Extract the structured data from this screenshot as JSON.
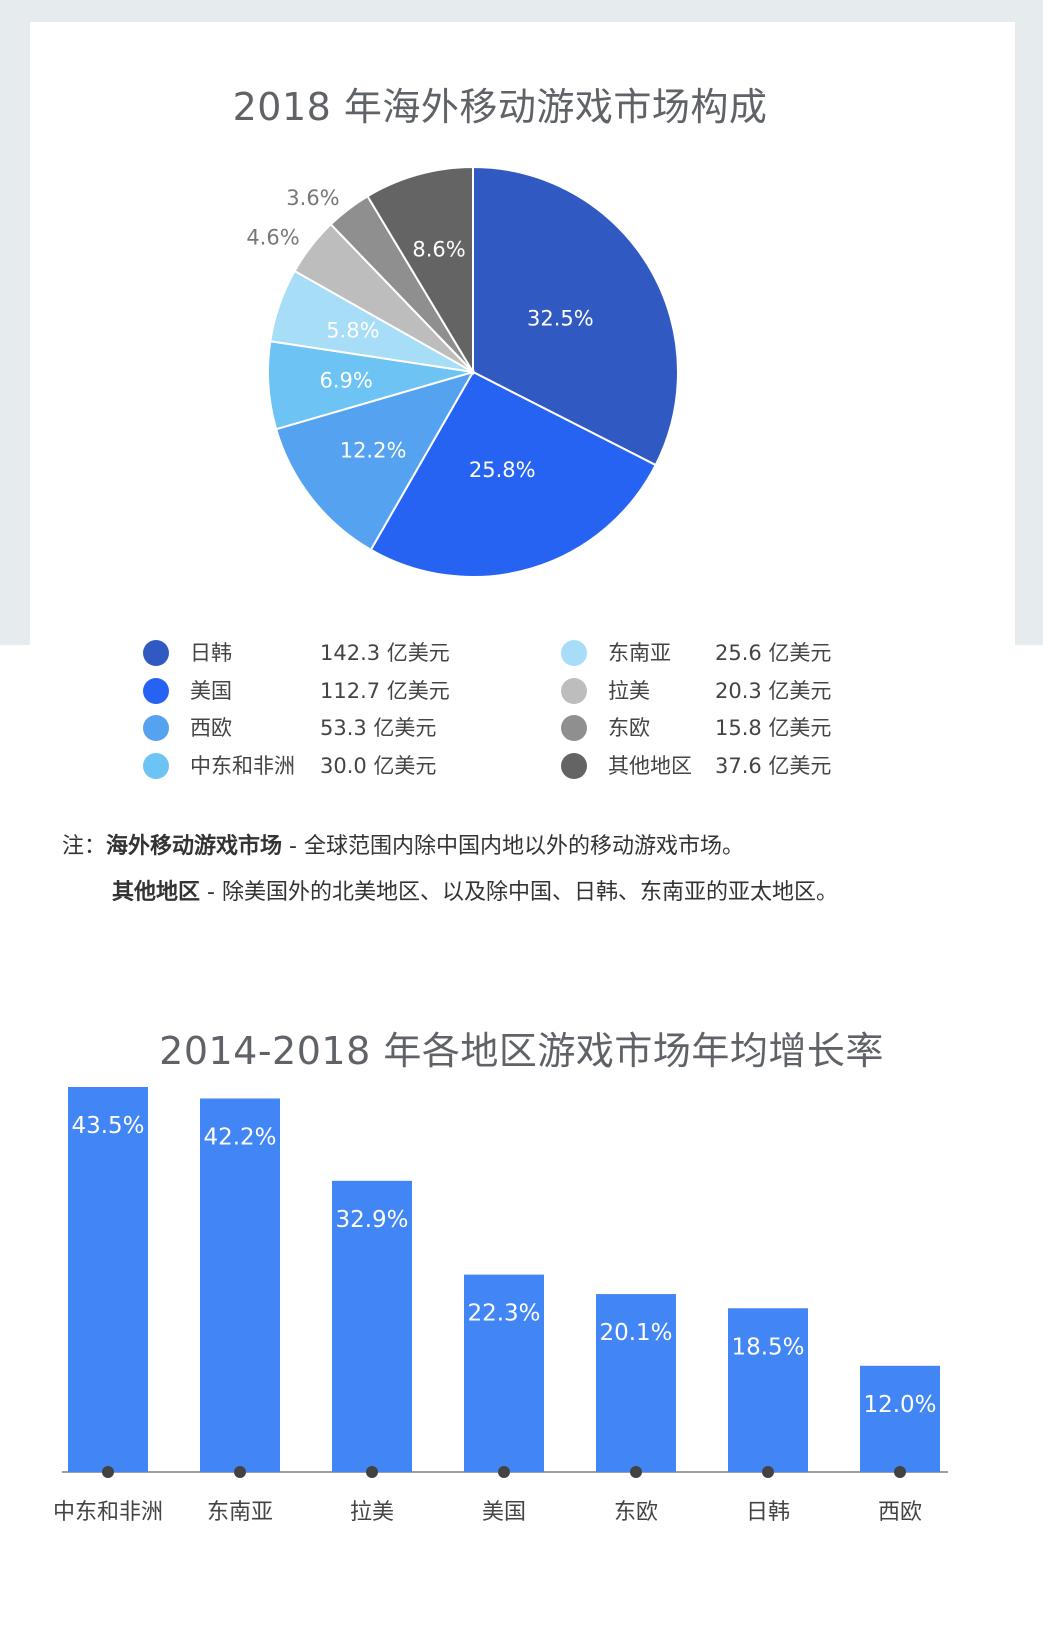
{
  "chart_data": [
    {
      "type": "pie",
      "title": "2018 年海外移动游戏市场构成",
      "slices": [
        {
          "name": "日韩",
          "value": 32.5,
          "label": "32.5%",
          "color": "#3159c2"
        },
        {
          "name": "美国",
          "value": 25.8,
          "label": "25.8%",
          "color": "#2763f2"
        },
        {
          "name": "西欧",
          "value": 12.2,
          "label": "12.2%",
          "color": "#55a3f0"
        },
        {
          "name": "中东和非洲",
          "value": 6.9,
          "label": "6.9%",
          "color": "#6ec3f5"
        },
        {
          "name": "东南亚",
          "value": 5.8,
          "label": "5.8%",
          "color": "#a8ddf8"
        },
        {
          "name": "拉美",
          "value": 4.6,
          "label": "4.6%",
          "color": "#bdbdbd"
        },
        {
          "name": "东欧",
          "value": 3.6,
          "label": "3.6%",
          "color": "#8f8f8f"
        },
        {
          "name": "其他地区",
          "value": 8.6,
          "label": "8.6%",
          "color": "#646464"
        }
      ],
      "legend": [
        {
          "name": "日韩",
          "value": "142.3 亿美元",
          "color": "#3159c2"
        },
        {
          "name": "美国",
          "value": "112.7 亿美元",
          "color": "#2763f2"
        },
        {
          "name": "西欧",
          "value": "53.3 亿美元",
          "color": "#55a3f0"
        },
        {
          "name": "中东和非洲",
          "value": "30.0 亿美元",
          "color": "#6ec3f5"
        },
        {
          "name": "东南亚",
          "value": "25.6 亿美元",
          "color": "#a8ddf8"
        },
        {
          "name": "拉美",
          "value": "20.3 亿美元",
          "color": "#bdbdbd"
        },
        {
          "name": "东欧",
          "value": "15.8 亿美元",
          "color": "#8f8f8f"
        },
        {
          "name": "其他地区",
          "value": "37.6 亿美元",
          "color": "#646464"
        }
      ],
      "legend_placement": "bottom"
    },
    {
      "type": "bar",
      "title": "2014-2018 年各地区游戏市场年均增长率",
      "categories": [
        "中东和非洲",
        "东南亚",
        "拉美",
        "美国",
        "东欧",
        "日韩",
        "西欧"
      ],
      "values": [
        43.5,
        42.2,
        32.9,
        22.3,
        20.1,
        18.5,
        12.0
      ],
      "value_labels": [
        "43.5%",
        "42.2%",
        "32.9%",
        "22.3%",
        "20.1%",
        "18.5%",
        "12.0%"
      ],
      "color": "#4285f4",
      "ylim": [
        0,
        43.5
      ],
      "grid": false
    }
  ],
  "note": {
    "prefix": "注：",
    "term1": "海外移动游戏市场",
    "def1": " - 全球范围内除中国内地以外的移动游戏市场。",
    "term2": "其他地区",
    "def2": " - 除美国外的北美地区、以及除中国、日韩、东南亚的亚太地区。"
  }
}
